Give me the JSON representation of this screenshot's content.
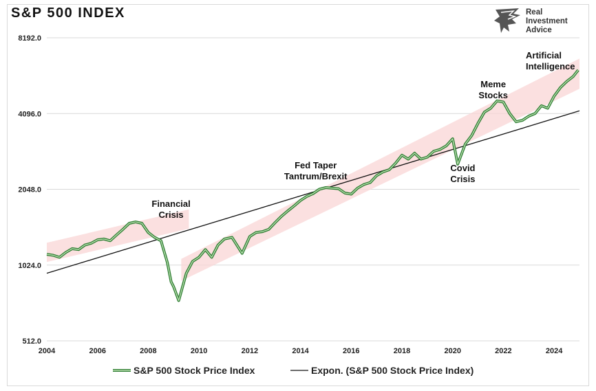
{
  "title": "S&P 500 INDEX",
  "logo": {
    "line1": "Real",
    "line2": "Investment",
    "line3": "Advice"
  },
  "colors": {
    "price_line": "#2e7d32",
    "price_line_inner": "#b9dfb0",
    "trend_line": "#111111",
    "band": "#f9d6d6"
  },
  "chart_data": {
    "type": "line",
    "title": "S&P 500 INDEX",
    "y_scale": "log2",
    "ylim": [
      512,
      8192
    ],
    "y_ticks": [
      "8192.0",
      "4096.0",
      "2048.0",
      "1024.0",
      "512.0"
    ],
    "x_ticks": [
      "2004",
      "2006",
      "2008",
      "2010",
      "2012",
      "2014",
      "2016",
      "2018",
      "2020",
      "2022",
      "2024"
    ],
    "xlim": [
      2004,
      2025
    ],
    "grid": "horizontal",
    "legend_position": "bottom",
    "series": [
      {
        "name": "S&P 500 Stock Price Index",
        "x": [
          2004.0,
          2004.25,
          2004.5,
          2004.75,
          2005.0,
          2005.25,
          2005.5,
          2005.75,
          2006.0,
          2006.25,
          2006.5,
          2006.75,
          2007.0,
          2007.25,
          2007.5,
          2007.75,
          2008.0,
          2008.25,
          2008.5,
          2008.75,
          2008.9,
          2009.0,
          2009.2,
          2009.5,
          2009.75,
          2010.0,
          2010.25,
          2010.5,
          2010.75,
          2011.0,
          2011.3,
          2011.7,
          2012.0,
          2012.25,
          2012.5,
          2012.75,
          2013.0,
          2013.25,
          2013.5,
          2013.75,
          2014.0,
          2014.25,
          2014.5,
          2014.75,
          2015.0,
          2015.5,
          2015.75,
          2016.0,
          2016.25,
          2016.5,
          2016.75,
          2017.0,
          2017.25,
          2017.5,
          2017.75,
          2018.0,
          2018.25,
          2018.5,
          2018.75,
          2019.0,
          2019.25,
          2019.5,
          2019.75,
          2020.0,
          2020.2,
          2020.5,
          2020.75,
          2021.0,
          2021.25,
          2021.5,
          2021.75,
          2022.0,
          2022.25,
          2022.5,
          2022.75,
          2023.0,
          2023.25,
          2023.5,
          2023.75,
          2024.0,
          2024.25,
          2024.5,
          2024.75,
          2024.95
        ],
        "values": [
          1130,
          1120,
          1100,
          1150,
          1190,
          1180,
          1230,
          1250,
          1290,
          1300,
          1280,
          1350,
          1420,
          1500,
          1520,
          1500,
          1380,
          1320,
          1280,
          1050,
          880,
          840,
          740,
          950,
          1060,
          1100,
          1180,
          1100,
          1230,
          1300,
          1320,
          1140,
          1330,
          1380,
          1390,
          1420,
          1510,
          1600,
          1680,
          1760,
          1850,
          1920,
          1970,
          2050,
          2080,
          2060,
          1980,
          1960,
          2070,
          2140,
          2180,
          2320,
          2400,
          2450,
          2600,
          2800,
          2700,
          2850,
          2700,
          2750,
          2900,
          2950,
          3050,
          3250,
          2580,
          3100,
          3350,
          3750,
          4150,
          4300,
          4600,
          4550,
          4100,
          3800,
          3850,
          4000,
          4100,
          4400,
          4300,
          4800,
          5200,
          5500,
          5750,
          6100
        ]
      },
      {
        "name": "Expon. (S&P 500 Stock Price Index)",
        "x": [
          2004,
          2025
        ],
        "values": [
          950,
          4200
        ]
      }
    ],
    "annotations": [
      {
        "text": "Financial",
        "text2": "Crisis"
      },
      {
        "text": "Fed Taper",
        "text2": "Tantrum/Brexit"
      },
      {
        "text": "Covid",
        "text2": "Crisis"
      },
      {
        "text": "Meme",
        "text2": "Stocks"
      },
      {
        "text": "Artificial",
        "text2": "Intelligence"
      }
    ]
  }
}
